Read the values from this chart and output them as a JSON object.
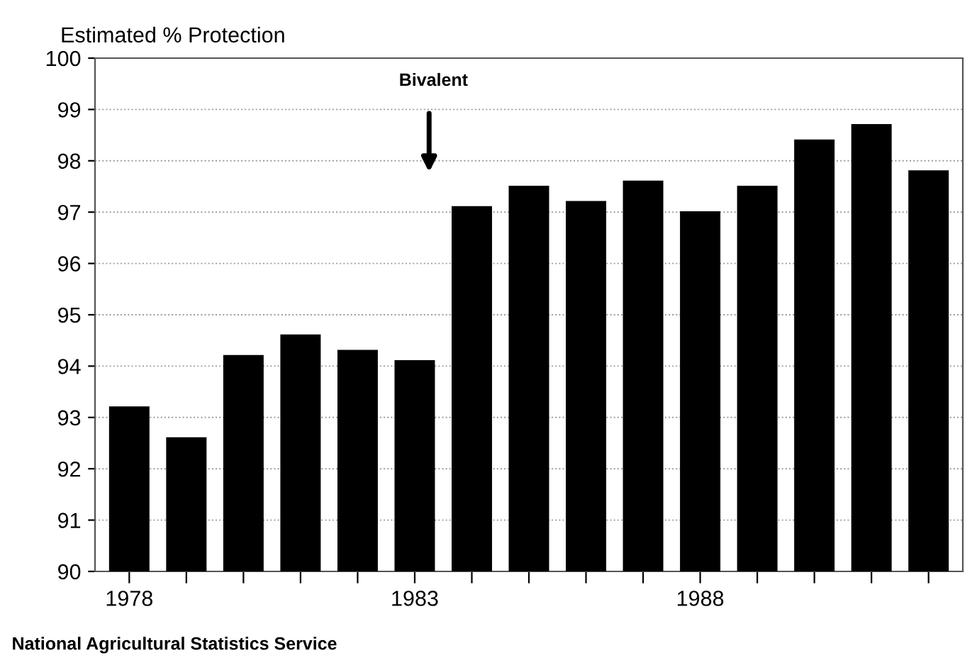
{
  "chart_data": {
    "type": "bar",
    "title": "Estimated % Protection",
    "categories": [
      "1978",
      null,
      null,
      null,
      null,
      "1983",
      null,
      null,
      null,
      null,
      "1988",
      null,
      null,
      null,
      null
    ],
    "values": [
      93.2,
      92.6,
      94.2,
      94.6,
      94.3,
      94.1,
      97.1,
      97.5,
      97.2,
      97.6,
      97.0,
      97.5,
      98.4,
      98.7,
      97.8
    ],
    "color": "#000000",
    "ylim": [
      90,
      100
    ],
    "yticks": [
      90,
      91,
      92,
      93,
      94,
      95,
      96,
      97,
      98,
      99,
      100
    ],
    "grid": "y",
    "annotations": [
      "Bivalent",
      "National Agricultural Statistics Service"
    ]
  }
}
